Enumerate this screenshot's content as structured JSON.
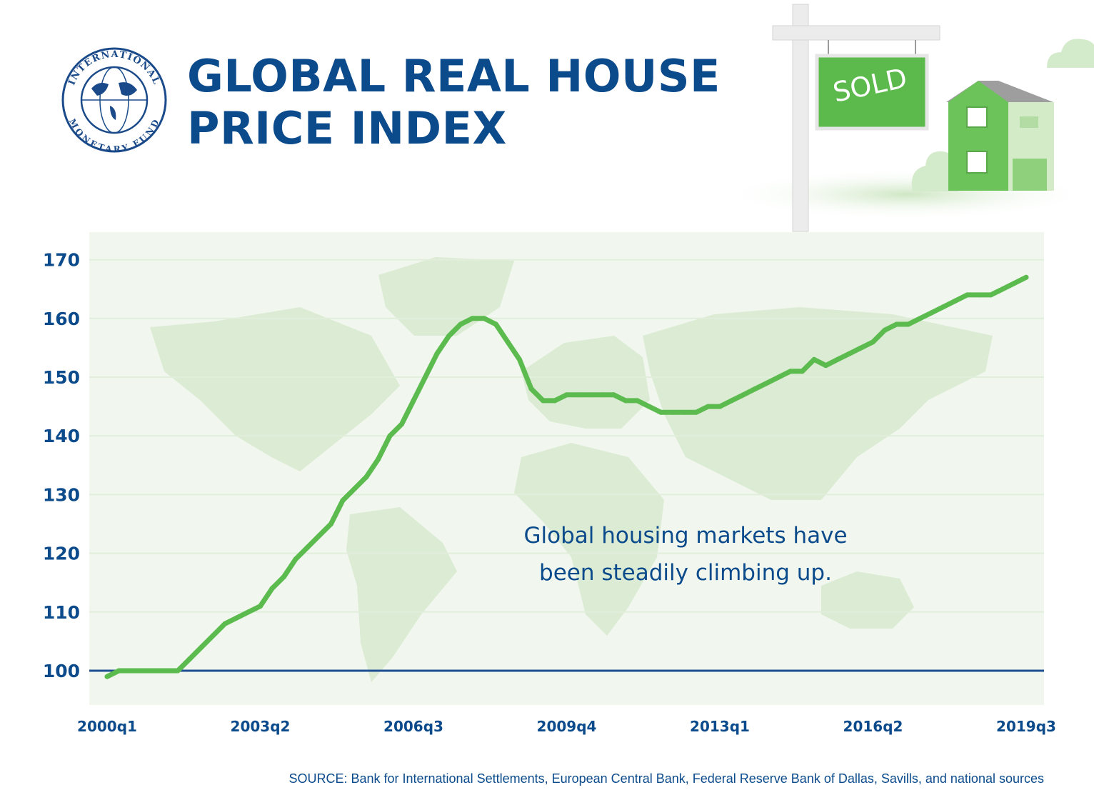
{
  "header": {
    "title_line1": "GLOBAL REAL HOUSE",
    "title_line2": "PRICE INDEX",
    "logo_text_top": "INTERNATIONAL",
    "logo_text_bottom": "MONETARY FUND",
    "sign_text": "SOLD"
  },
  "annotation": {
    "line1": "Global housing markets have",
    "line2": "been steadily climbing up."
  },
  "source": "SOURCE: Bank for International Settlements, European Central Bank, Federal Reserve Bank of Dallas, Savills, and national sources",
  "colors": {
    "title": "#0b4a8b",
    "line": "#5cbb4e",
    "baseline": "#1f4f93",
    "plot_bg": "#f1f7ee",
    "map": "#dcebd4",
    "sign": "#5cb94b"
  },
  "chart_data": {
    "type": "line",
    "title": "GLOBAL REAL HOUSE PRICE INDEX",
    "xlabel": "",
    "ylabel": "",
    "ylim": [
      93,
      172
    ],
    "yticks": [
      100,
      110,
      120,
      130,
      140,
      150,
      160,
      170
    ],
    "xtick_labels": [
      "2000q1",
      "2003q2",
      "2006q3",
      "2009q4",
      "2013q1",
      "2016q2",
      "2019q3"
    ],
    "reference_line": 100,
    "grid": true,
    "x": [
      "2000q1",
      "2000q2",
      "2000q3",
      "2000q4",
      "2001q1",
      "2001q2",
      "2001q3",
      "2001q4",
      "2002q1",
      "2002q2",
      "2002q3",
      "2002q4",
      "2003q1",
      "2003q2",
      "2003q3",
      "2003q4",
      "2004q1",
      "2004q2",
      "2004q3",
      "2004q4",
      "2005q1",
      "2005q2",
      "2005q3",
      "2005q4",
      "2006q1",
      "2006q2",
      "2006q3",
      "2006q4",
      "2007q1",
      "2007q2",
      "2007q3",
      "2007q4",
      "2008q1",
      "2008q2",
      "2008q3",
      "2008q4",
      "2009q1",
      "2009q2",
      "2009q3",
      "2009q4",
      "2010q1",
      "2010q2",
      "2010q3",
      "2010q4",
      "2011q1",
      "2011q2",
      "2011q3",
      "2011q4",
      "2012q1",
      "2012q2",
      "2012q3",
      "2012q4",
      "2013q1",
      "2013q2",
      "2013q3",
      "2013q4",
      "2014q1",
      "2014q2",
      "2014q3",
      "2014q4",
      "2015q1",
      "2015q2",
      "2015q3",
      "2015q4",
      "2016q1",
      "2016q2",
      "2016q3",
      "2016q4",
      "2017q1",
      "2017q2",
      "2017q3",
      "2017q4",
      "2018q1",
      "2018q2",
      "2018q3",
      "2018q4",
      "2019q1",
      "2019q2",
      "2019q3"
    ],
    "series": [
      {
        "values": [
          99,
          100,
          100,
          100,
          100,
          100,
          100,
          102,
          104,
          106,
          108,
          109,
          110,
          111,
          114,
          116,
          119,
          121,
          123,
          125,
          129,
          131,
          133,
          136,
          140,
          142,
          146,
          150,
          154,
          157,
          159,
          160,
          160,
          159,
          156,
          153,
          148,
          146,
          146,
          147,
          147,
          147,
          147,
          147,
          146,
          146,
          145,
          144,
          144,
          144,
          144,
          145,
          145,
          146,
          147,
          148,
          149,
          150,
          151,
          151,
          153,
          152,
          153,
          154,
          155,
          156,
          158,
          159,
          159,
          160,
          161,
          162,
          163,
          164,
          164,
          164,
          165,
          166,
          167
        ]
      }
    ]
  }
}
